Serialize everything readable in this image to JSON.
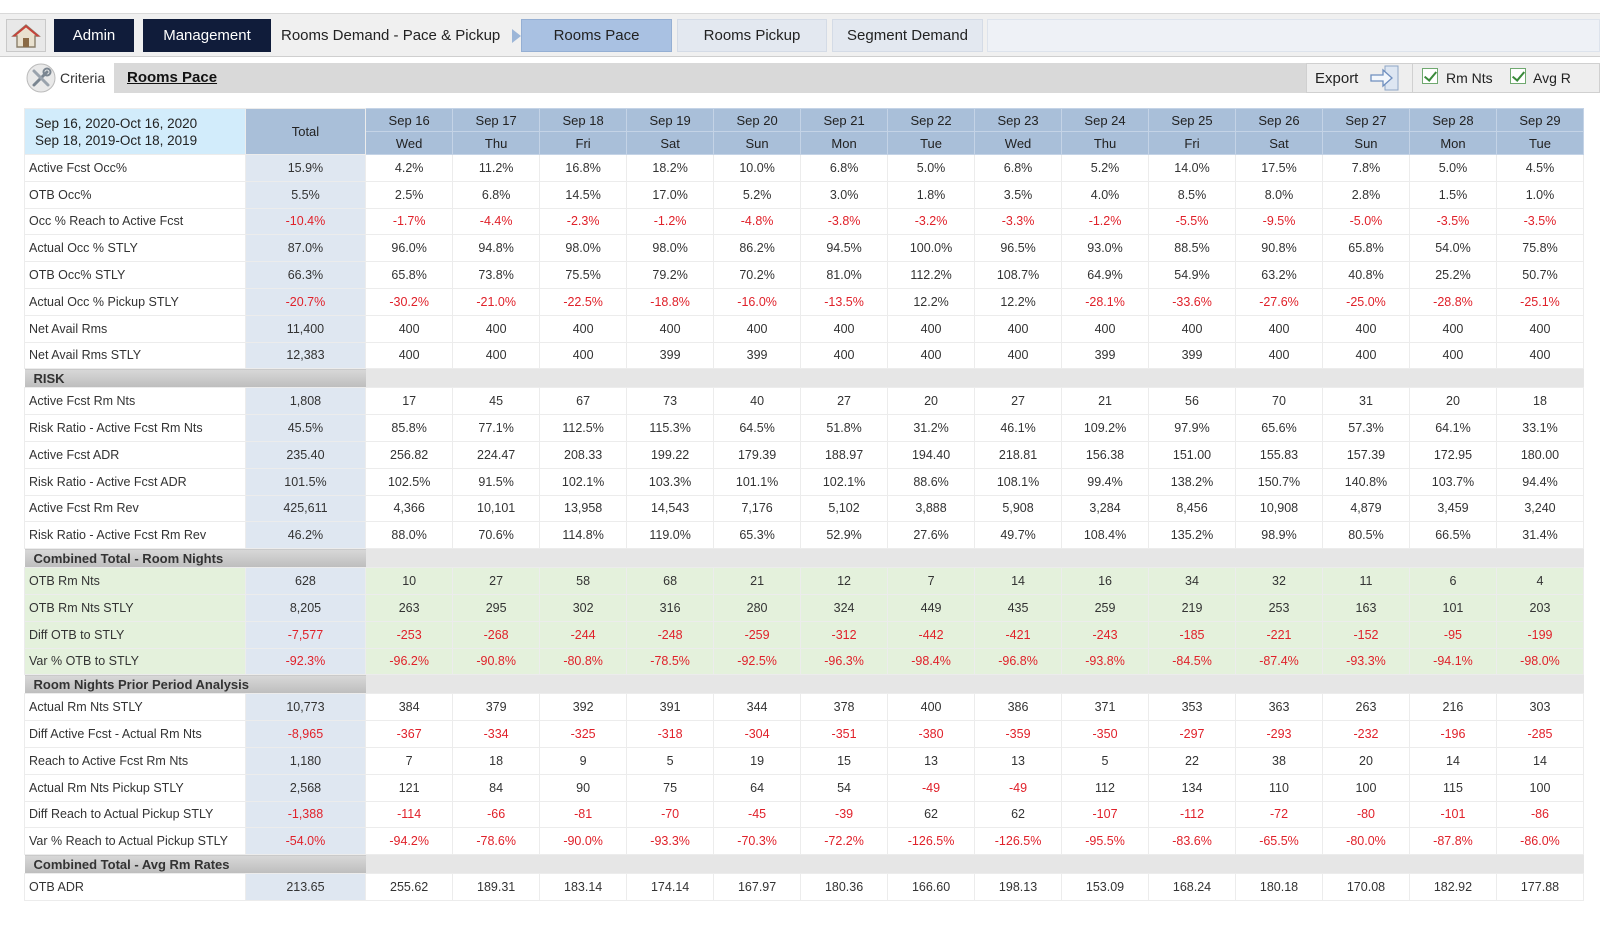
{
  "nav": {
    "admin": "Admin",
    "management": "Management",
    "breadcrumb": "Rooms Demand - Pace & Pickup",
    "tabs": [
      "Rooms Pace",
      "Rooms Pickup",
      "Segment Demand"
    ],
    "active_tab": "Rooms Pace"
  },
  "criteria": {
    "label": "Criteria",
    "title": "Rooms Pace",
    "export": "Export",
    "checks": [
      "Rm Nts",
      "Avg R"
    ]
  },
  "grid": {
    "range_line1": "Sep 16, 2020-Oct 16, 2020",
    "range_line2": "Sep 18, 2019-Oct 18, 2019",
    "total_header": "Total",
    "dates": [
      "Sep 16",
      "Sep 17",
      "Sep 18",
      "Sep 19",
      "Sep 20",
      "Sep 21",
      "Sep 22",
      "Sep 23",
      "Sep 24",
      "Sep 25",
      "Sep 26",
      "Sep 27",
      "Sep 28",
      "Sep 29"
    ],
    "days": [
      "Wed",
      "Thu",
      "Fri",
      "Sat",
      "Sun",
      "Mon",
      "Tue",
      "Wed",
      "Thu",
      "Fri",
      "Sat",
      "Sun",
      "Mon",
      "Tue"
    ],
    "sections": [
      {
        "title": "",
        "green": false,
        "rows": [
          {
            "label": "Active Fcst Occ%",
            "total": "15.9%",
            "values": [
              "4.2%",
              "11.2%",
              "16.8%",
              "18.2%",
              "10.0%",
              "6.8%",
              "5.0%",
              "6.8%",
              "5.2%",
              "14.0%",
              "17.5%",
              "7.8%",
              "5.0%",
              "4.5%"
            ]
          },
          {
            "label": "OTB Occ%",
            "total": "5.5%",
            "values": [
              "2.5%",
              "6.8%",
              "14.5%",
              "17.0%",
              "5.2%",
              "3.0%",
              "1.8%",
              "3.5%",
              "4.0%",
              "8.5%",
              "8.0%",
              "2.8%",
              "1.5%",
              "1.0%"
            ]
          },
          {
            "label": "Occ % Reach to Active Fcst",
            "total": "-10.4%",
            "values": [
              "-1.7%",
              "-4.4%",
              "-2.3%",
              "-1.2%",
              "-4.8%",
              "-3.8%",
              "-3.2%",
              "-3.3%",
              "-1.2%",
              "-5.5%",
              "-9.5%",
              "-5.0%",
              "-3.5%",
              "-3.5%"
            ]
          },
          {
            "label": "Actual Occ % STLY",
            "total": "87.0%",
            "values": [
              "96.0%",
              "94.8%",
              "98.0%",
              "98.0%",
              "86.2%",
              "94.5%",
              "100.0%",
              "96.5%",
              "93.0%",
              "88.5%",
              "90.8%",
              "65.8%",
              "54.0%",
              "75.8%"
            ]
          },
          {
            "label": "OTB Occ% STLY",
            "total": "66.3%",
            "values": [
              "65.8%",
              "73.8%",
              "75.5%",
              "79.2%",
              "70.2%",
              "81.0%",
              "112.2%",
              "108.7%",
              "64.9%",
              "54.9%",
              "63.2%",
              "40.8%",
              "25.2%",
              "50.7%"
            ]
          },
          {
            "label": "Actual Occ % Pickup STLY",
            "total": "-20.7%",
            "values": [
              "-30.2%",
              "-21.0%",
              "-22.5%",
              "-18.8%",
              "-16.0%",
              "-13.5%",
              "12.2%",
              "12.2%",
              "-28.1%",
              "-33.6%",
              "-27.6%",
              "-25.0%",
              "-28.8%",
              "-25.1%"
            ]
          },
          {
            "label": "Net Avail Rms",
            "total": "11,400",
            "values": [
              "400",
              "400",
              "400",
              "400",
              "400",
              "400",
              "400",
              "400",
              "400",
              "400",
              "400",
              "400",
              "400",
              "400"
            ]
          },
          {
            "label": "Net Avail Rms STLY",
            "total": "12,383",
            "values": [
              "400",
              "400",
              "400",
              "399",
              "399",
              "400",
              "400",
              "400",
              "399",
              "399",
              "400",
              "400",
              "400",
              "400"
            ]
          }
        ]
      },
      {
        "title": "RISK",
        "green": false,
        "rows": [
          {
            "label": "Active Fcst Rm Nts",
            "total": "1,808",
            "values": [
              "17",
              "45",
              "67",
              "73",
              "40",
              "27",
              "20",
              "27",
              "21",
              "56",
              "70",
              "31",
              "20",
              "18"
            ]
          },
          {
            "label": "Risk Ratio - Active Fcst Rm Nts",
            "total": "45.5%",
            "values": [
              "85.8%",
              "77.1%",
              "112.5%",
              "115.3%",
              "64.5%",
              "51.8%",
              "31.2%",
              "46.1%",
              "109.2%",
              "97.9%",
              "65.6%",
              "57.3%",
              "64.1%",
              "33.1%"
            ]
          },
          {
            "label": "Active Fcst ADR",
            "total": "235.40",
            "values": [
              "256.82",
              "224.47",
              "208.33",
              "199.22",
              "179.39",
              "188.97",
              "194.40",
              "218.81",
              "156.38",
              "151.00",
              "155.83",
              "157.39",
              "172.95",
              "180.00"
            ]
          },
          {
            "label": "Risk Ratio - Active Fcst ADR",
            "total": "101.5%",
            "values": [
              "102.5%",
              "91.5%",
              "102.1%",
              "103.3%",
              "101.1%",
              "102.1%",
              "88.6%",
              "108.1%",
              "99.4%",
              "138.2%",
              "150.7%",
              "140.8%",
              "103.7%",
              "94.4%"
            ]
          },
          {
            "label": "Active Fcst Rm Rev",
            "total": "425,611",
            "values": [
              "4,366",
              "10,101",
              "13,958",
              "14,543",
              "7,176",
              "5,102",
              "3,888",
              "5,908",
              "3,284",
              "8,456",
              "10,908",
              "4,879",
              "3,459",
              "3,240"
            ]
          },
          {
            "label": "Risk Ratio - Active Fcst Rm Rev",
            "total": "46.2%",
            "values": [
              "88.0%",
              "70.6%",
              "114.8%",
              "119.0%",
              "65.3%",
              "52.9%",
              "27.6%",
              "49.7%",
              "108.4%",
              "135.2%",
              "98.9%",
              "80.5%",
              "66.5%",
              "31.4%"
            ]
          }
        ]
      },
      {
        "title": "Combined Total - Room Nights",
        "green": true,
        "rows": [
          {
            "label": "OTB Rm Nts",
            "total": "628",
            "values": [
              "10",
              "27",
              "58",
              "68",
              "21",
              "12",
              "7",
              "14",
              "16",
              "34",
              "32",
              "11",
              "6",
              "4"
            ]
          },
          {
            "label": "OTB Rm Nts STLY",
            "total": "8,205",
            "values": [
              "263",
              "295",
              "302",
              "316",
              "280",
              "324",
              "449",
              "435",
              "259",
              "219",
              "253",
              "163",
              "101",
              "203"
            ]
          },
          {
            "label": "Diff OTB to STLY",
            "total": "-7,577",
            "values": [
              "-253",
              "-268",
              "-244",
              "-248",
              "-259",
              "-312",
              "-442",
              "-421",
              "-243",
              "-185",
              "-221",
              "-152",
              "-95",
              "-199"
            ]
          },
          {
            "label": "Var % OTB to STLY",
            "total": "-92.3%",
            "values": [
              "-96.2%",
              "-90.8%",
              "-80.8%",
              "-78.5%",
              "-92.5%",
              "-96.3%",
              "-98.4%",
              "-96.8%",
              "-93.8%",
              "-84.5%",
              "-87.4%",
              "-93.3%",
              "-94.1%",
              "-98.0%"
            ]
          }
        ]
      },
      {
        "title": "Room Nights Prior Period Analysis",
        "green": false,
        "rows": [
          {
            "label": "Actual Rm Nts STLY",
            "total": "10,773",
            "values": [
              "384",
              "379",
              "392",
              "391",
              "344",
              "378",
              "400",
              "386",
              "371",
              "353",
              "363",
              "263",
              "216",
              "303"
            ]
          },
          {
            "label": "Diff Active Fcst - Actual Rm Nts",
            "total": "-8,965",
            "values": [
              "-367",
              "-334",
              "-325",
              "-318",
              "-304",
              "-351",
              "-380",
              "-359",
              "-350",
              "-297",
              "-293",
              "-232",
              "-196",
              "-285"
            ]
          },
          {
            "label": "Reach to Active Fcst Rm Nts",
            "total": "1,180",
            "values": [
              "7",
              "18",
              "9",
              "5",
              "19",
              "15",
              "13",
              "13",
              "5",
              "22",
              "38",
              "20",
              "14",
              "14"
            ]
          },
          {
            "label": "Actual Rm Nts Pickup STLY",
            "total": "2,568",
            "values": [
              "121",
              "84",
              "90",
              "75",
              "64",
              "54",
              "-49",
              "-49",
              "112",
              "134",
              "110",
              "100",
              "115",
              "100"
            ]
          },
          {
            "label": "Diff Reach to Actual Pickup STLY",
            "total": "-1,388",
            "values": [
              "-114",
              "-66",
              "-81",
              "-70",
              "-45",
              "-39",
              "62",
              "62",
              "-107",
              "-112",
              "-72",
              "-80",
              "-101",
              "-86"
            ]
          },
          {
            "label": "Var % Reach to Actual Pickup STLY",
            "total": "-54.0%",
            "values": [
              "-94.2%",
              "-78.6%",
              "-90.0%",
              "-93.3%",
              "-70.3%",
              "-72.2%",
              "-126.5%",
              "-126.5%",
              "-95.5%",
              "-83.6%",
              "-65.5%",
              "-80.0%",
              "-87.8%",
              "-86.0%"
            ]
          }
        ]
      },
      {
        "title": "Combined Total - Avg Rm Rates",
        "green": false,
        "rows": [
          {
            "label": "OTB ADR",
            "total": "213.65",
            "values": [
              "255.62",
              "189.31",
              "183.14",
              "174.14",
              "167.97",
              "180.36",
              "166.60",
              "198.13",
              "153.09",
              "168.24",
              "180.18",
              "170.08",
              "182.92",
              "177.88"
            ]
          }
        ]
      }
    ]
  },
  "colors": {
    "nav_dark": "#101c3a",
    "header_blue": "#a9bfd9",
    "range_header": "#d2ecfb",
    "negative": "#e0212a",
    "green_row": "#e4f1dc"
  }
}
